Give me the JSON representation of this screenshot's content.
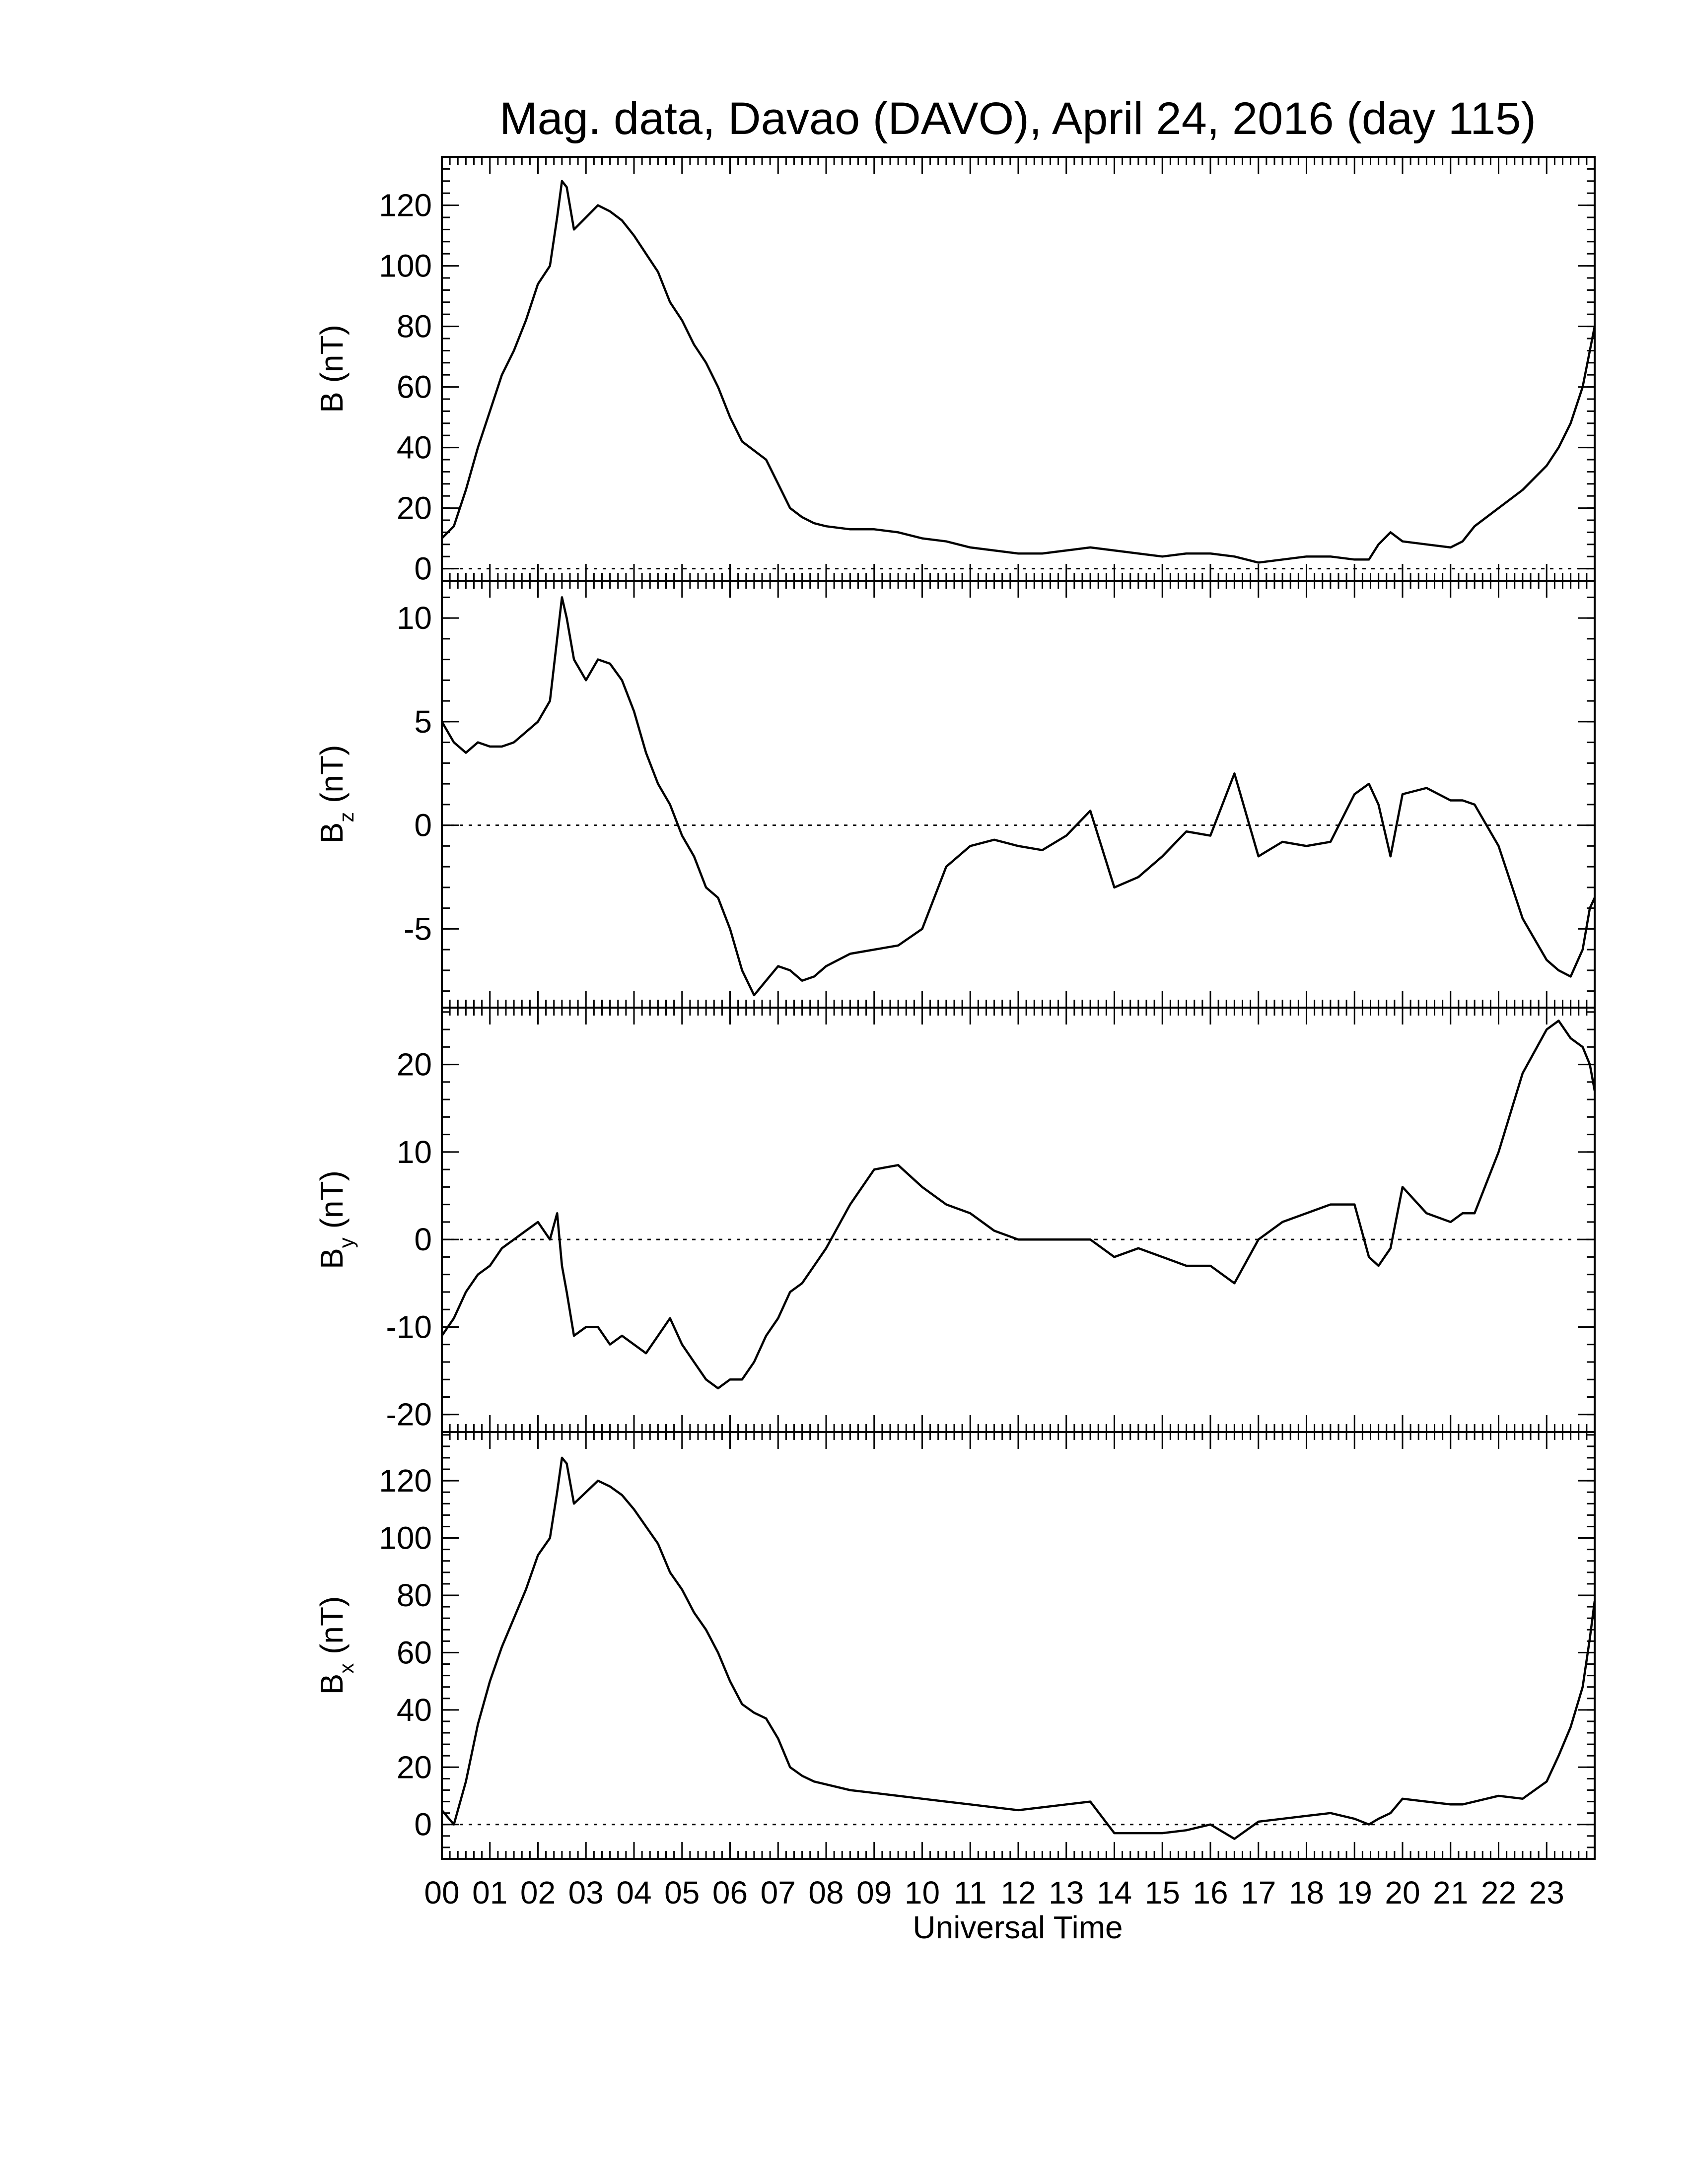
{
  "chart_data": {
    "type": "line",
    "title": "Mag. data, Davao (DAVO), April 24, 2016 (day 115)",
    "xlabel": "Universal Time",
    "x_ticks": [
      "00",
      "01",
      "02",
      "03",
      "04",
      "05",
      "06",
      "07",
      "08",
      "09",
      "10",
      "11",
      "12",
      "13",
      "14",
      "15",
      "16",
      "17",
      "18",
      "19",
      "20",
      "21",
      "22",
      "23"
    ],
    "xlim": [
      0,
      24
    ],
    "panels": [
      {
        "id": "B",
        "ylabel": "B (nT)",
        "ylabel_main": "B",
        "ylabel_sub": "",
        "ylabel_unit": " (nT)",
        "ylim": [
          -4,
          136
        ],
        "y_ticks": [
          0,
          20,
          40,
          60,
          80,
          100,
          120
        ],
        "y_tick_labels": [
          "0",
          "20",
          "40",
          "60",
          "80",
          "100",
          "120"
        ],
        "zero_line": true,
        "series": [
          {
            "x": [
              0,
              0.25,
              0.5,
              0.75,
              1.0,
              1.25,
              1.5,
              1.75,
              2.0,
              2.25,
              2.4,
              2.5,
              2.6,
              2.75,
              3.0,
              3.25,
              3.5,
              3.75,
              4.0,
              4.25,
              4.5,
              4.75,
              5.0,
              5.25,
              5.5,
              5.75,
              6.0,
              6.25,
              6.5,
              6.75,
              7.0,
              7.25,
              7.5,
              7.75,
              8.0,
              8.5,
              9.0,
              9.5,
              10.0,
              10.5,
              11.0,
              11.5,
              12.0,
              12.5,
              13.0,
              13.5,
              14.0,
              14.5,
              15.0,
              15.5,
              16.0,
              16.5,
              17.0,
              17.5,
              18.0,
              18.5,
              19.0,
              19.3,
              19.5,
              19.75,
              20.0,
              20.5,
              21.0,
              21.25,
              21.5,
              22.0,
              22.5,
              23.0,
              23.25,
              23.5,
              23.75,
              23.9,
              24.0
            ],
            "y": [
              10,
              14,
              26,
              40,
              52,
              64,
              72,
              82,
              94,
              100,
              116,
              128,
              126,
              112,
              116,
              120,
              118,
              115,
              110,
              104,
              98,
              88,
              82,
              74,
              68,
              60,
              50,
              42,
              39,
              36,
              28,
              20,
              17,
              15,
              14,
              13,
              13,
              12,
              10,
              9,
              7,
              6,
              5,
              5,
              6,
              7,
              6,
              5,
              4,
              5,
              5,
              4,
              2,
              3,
              4,
              4,
              3,
              3,
              8,
              12,
              9,
              8,
              7,
              9,
              14,
              20,
              26,
              34,
              40,
              48,
              60,
              72,
              80
            ]
          }
        ]
      },
      {
        "id": "Bz",
        "ylabel": "Bz (nT)",
        "ylabel_main": "B",
        "ylabel_sub": "z",
        "ylabel_unit": " (nT)",
        "ylim": [
          -8.8,
          11.8
        ],
        "y_ticks": [
          -5,
          0,
          5,
          10
        ],
        "y_tick_labels": [
          "-5",
          "0",
          "5",
          "10"
        ],
        "zero_line": true,
        "series": [
          {
            "x": [
              0,
              0.25,
              0.5,
              0.75,
              1.0,
              1.25,
              1.5,
              1.75,
              2.0,
              2.25,
              2.4,
              2.5,
              2.6,
              2.75,
              3.0,
              3.25,
              3.5,
              3.75,
              4.0,
              4.25,
              4.5,
              4.75,
              5.0,
              5.25,
              5.5,
              5.75,
              6.0,
              6.25,
              6.5,
              6.75,
              7.0,
              7.25,
              7.5,
              7.75,
              8.0,
              8.5,
              9.0,
              9.5,
              10.0,
              10.5,
              11.0,
              11.5,
              12.0,
              12.5,
              13.0,
              13.5,
              14.0,
              14.5,
              15.0,
              15.5,
              16.0,
              16.5,
              17.0,
              17.5,
              18.0,
              18.5,
              19.0,
              19.3,
              19.5,
              19.75,
              20.0,
              20.5,
              21.0,
              21.25,
              21.5,
              22.0,
              22.5,
              23.0,
              23.25,
              23.5,
              23.75,
              23.9,
              24.0
            ],
            "y": [
              5,
              4,
              3.5,
              4,
              3.8,
              3.8,
              4,
              4.5,
              5,
              6,
              9,
              11,
              10,
              8,
              7,
              8,
              7.8,
              7,
              5.5,
              3.5,
              2,
              1,
              -0.5,
              -1.5,
              -3,
              -3.5,
              -5,
              -7,
              -8.2,
              -7.5,
              -6.8,
              -7,
              -7.5,
              -7.3,
              -6.8,
              -6.2,
              -6,
              -5.8,
              -5,
              -2,
              -1,
              -0.7,
              -1,
              -1.2,
              -0.5,
              0.7,
              -3,
              -2.5,
              -1.5,
              -0.3,
              -0.5,
              2.5,
              -1.5,
              -0.8,
              -1,
              -0.8,
              1.5,
              2,
              1,
              -1.5,
              1.5,
              1.8,
              1.2,
              1.2,
              1,
              -1,
              -4.5,
              -6.5,
              -7,
              -7.3,
              -6,
              -4,
              -3.5
            ]
          }
        ]
      },
      {
        "id": "By",
        "ylabel": "By (nT)",
        "ylabel_main": "B",
        "ylabel_sub": "y",
        "ylabel_unit": " (nT)",
        "ylim": [
          -22,
          26.5
        ],
        "y_ticks": [
          -20,
          -10,
          0,
          10,
          20
        ],
        "y_tick_labels": [
          "-20",
          "-10",
          "0",
          "10",
          "20"
        ],
        "zero_line": true,
        "series": [
          {
            "x": [
              0,
              0.25,
              0.5,
              0.75,
              1.0,
              1.25,
              1.5,
              1.75,
              2.0,
              2.25,
              2.4,
              2.5,
              2.6,
              2.75,
              3.0,
              3.25,
              3.5,
              3.75,
              4.0,
              4.25,
              4.5,
              4.75,
              5.0,
              5.25,
              5.5,
              5.75,
              6.0,
              6.25,
              6.5,
              6.75,
              7.0,
              7.25,
              7.5,
              7.75,
              8.0,
              8.5,
              9.0,
              9.5,
              10.0,
              10.5,
              11.0,
              11.5,
              12.0,
              12.5,
              13.0,
              13.5,
              14.0,
              14.5,
              15.0,
              15.5,
              16.0,
              16.5,
              17.0,
              17.5,
              18.0,
              18.5,
              19.0,
              19.3,
              19.5,
              19.75,
              20.0,
              20.5,
              21.0,
              21.25,
              21.5,
              22.0,
              22.5,
              23.0,
              23.25,
              23.5,
              23.75,
              23.9,
              24.0
            ],
            "y": [
              -11,
              -9,
              -6,
              -4,
              -3,
              -1,
              0,
              1,
              2,
              0,
              3,
              -3,
              -6,
              -11,
              -10,
              -10,
              -12,
              -11,
              -12,
              -13,
              -11,
              -9,
              -12,
              -14,
              -16,
              -17,
              -16,
              -16,
              -14,
              -11,
              -9,
              -6,
              -5,
              -3,
              -1,
              4,
              8,
              8.5,
              6,
              4,
              3,
              1,
              0,
              0,
              0,
              0,
              -2,
              -1,
              -2,
              -3,
              -3,
              -5,
              0,
              2,
              3,
              4,
              4,
              -2,
              -3,
              -1,
              6,
              3,
              2,
              3,
              3,
              10,
              19,
              24,
              25,
              23,
              22,
              20,
              17
            ]
          }
        ]
      },
      {
        "id": "Bx",
        "ylabel": "Bx (nT)",
        "ylabel_main": "B",
        "ylabel_sub": "x",
        "ylabel_unit": " (nT)",
        "ylim": [
          -12,
          137
        ],
        "y_ticks": [
          0,
          20,
          40,
          60,
          80,
          100,
          120
        ],
        "y_tick_labels": [
          "0",
          "20",
          "40",
          "60",
          "80",
          "100",
          "120"
        ],
        "zero_line": true,
        "series": [
          {
            "x": [
              0,
              0.25,
              0.5,
              0.75,
              1.0,
              1.25,
              1.5,
              1.75,
              2.0,
              2.25,
              2.4,
              2.5,
              2.6,
              2.75,
              3.0,
              3.25,
              3.5,
              3.75,
              4.0,
              4.25,
              4.5,
              4.75,
              5.0,
              5.25,
              5.5,
              5.75,
              6.0,
              6.25,
              6.5,
              6.75,
              7.0,
              7.25,
              7.5,
              7.75,
              8.0,
              8.5,
              9.0,
              9.5,
              10.0,
              10.5,
              11.0,
              11.5,
              12.0,
              12.5,
              13.0,
              13.5,
              14.0,
              14.5,
              15.0,
              15.5,
              16.0,
              16.5,
              17.0,
              17.5,
              18.0,
              18.5,
              19.0,
              19.3,
              19.5,
              19.75,
              20.0,
              20.5,
              21.0,
              21.25,
              21.5,
              22.0,
              22.5,
              23.0,
              23.25,
              23.5,
              23.75,
              23.9,
              24.0
            ],
            "y": [
              5,
              0,
              15,
              35,
              50,
              62,
              72,
              82,
              94,
              100,
              116,
              128,
              126,
              112,
              116,
              120,
              118,
              115,
              110,
              104,
              98,
              88,
              82,
              74,
              68,
              60,
              50,
              42,
              39,
              37,
              30,
              20,
              17,
              15,
              14,
              12,
              11,
              10,
              9,
              8,
              7,
              6,
              5,
              6,
              7,
              8,
              -3,
              -3,
              -3,
              -2,
              0,
              -5,
              1,
              2,
              3,
              4,
              2,
              0,
              2,
              4,
              9,
              8,
              7,
              7,
              8,
              10,
              9,
              15,
              24,
              34,
              48,
              65,
              78
            ]
          }
        ]
      }
    ]
  }
}
